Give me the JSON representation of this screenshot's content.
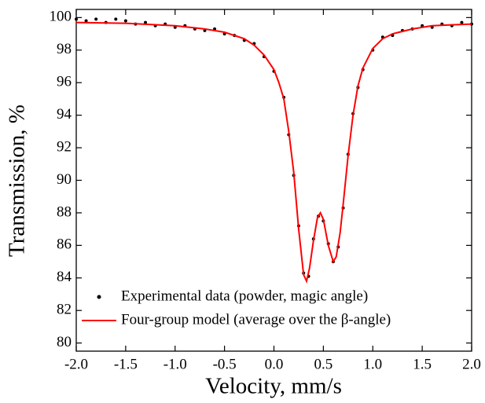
{
  "chart_data": {
    "type": "scatter-line",
    "x_label": "Velocity, mm/s",
    "y_label": "Transmission, %",
    "xlim": [
      -2,
      2
    ],
    "ylim": [
      79.5,
      100.5
    ],
    "xticks": [
      {
        "value": -2,
        "label": "-2.0"
      },
      {
        "value": -1.5,
        "label": "-1.5"
      },
      {
        "value": -1,
        "label": "-1.0"
      },
      {
        "value": -0.5,
        "label": "-0.5"
      },
      {
        "value": 0,
        "label": "0.0"
      },
      {
        "value": 0.5,
        "label": "0.5"
      },
      {
        "value": 1,
        "label": "1.0"
      },
      {
        "value": 1.5,
        "label": "1.5"
      },
      {
        "value": 2,
        "label": "2.0"
      }
    ],
    "yticks": [
      80,
      82,
      84,
      86,
      88,
      90,
      92,
      94,
      96,
      98,
      100
    ],
    "series": [
      {
        "name": "Experimental data (powder, magic angle)",
        "color": "#000000",
        "style": "points",
        "x": [
          -2.0,
          -1.9,
          -1.8,
          -1.7,
          -1.6,
          -1.5,
          -1.4,
          -1.3,
          -1.2,
          -1.1,
          -1.0,
          -0.9,
          -0.8,
          -0.7,
          -0.6,
          -0.5,
          -0.4,
          -0.3,
          -0.2,
          -0.1,
          0.0,
          0.1,
          0.15,
          0.2,
          0.25,
          0.3,
          0.35,
          0.4,
          0.45,
          0.5,
          0.55,
          0.6,
          0.65,
          0.7,
          0.75,
          0.8,
          0.85,
          0.9,
          1.0,
          1.1,
          1.2,
          1.3,
          1.4,
          1.5,
          1.6,
          1.7,
          1.8,
          1.9,
          2.0
        ],
        "values": [
          99.9,
          99.8,
          99.9,
          99.7,
          99.9,
          99.8,
          99.6,
          99.7,
          99.5,
          99.6,
          99.4,
          99.5,
          99.3,
          99.2,
          99.3,
          99.0,
          98.9,
          98.6,
          98.4,
          97.6,
          96.7,
          95.1,
          92.8,
          90.3,
          87.2,
          84.3,
          84.1,
          86.4,
          87.8,
          87.5,
          86.1,
          85.0,
          85.9,
          88.3,
          91.6,
          94.1,
          95.7,
          96.8,
          98.0,
          98.8,
          98.9,
          99.2,
          99.3,
          99.5,
          99.4,
          99.6,
          99.5,
          99.7,
          99.6
        ]
      },
      {
        "name": "Four-group model (average over the β-angle)",
        "color": "#ff0000",
        "style": "line",
        "x": [
          -2.0,
          -1.5,
          -1.0,
          -0.7,
          -0.5,
          -0.3,
          -0.2,
          -0.1,
          0.0,
          0.05,
          0.1,
          0.15,
          0.2,
          0.25,
          0.3,
          0.33,
          0.36,
          0.4,
          0.44,
          0.47,
          0.5,
          0.55,
          0.6,
          0.63,
          0.67,
          0.7,
          0.75,
          0.8,
          0.85,
          0.9,
          1.0,
          1.1,
          1.2,
          1.4,
          1.6,
          1.8,
          2.0
        ],
        "values": [
          99.7,
          99.65,
          99.5,
          99.3,
          99.1,
          98.7,
          98.3,
          97.7,
          96.8,
          96.0,
          95.0,
          93.0,
          90.5,
          87.0,
          84.2,
          83.8,
          84.6,
          86.3,
          87.7,
          88.0,
          87.6,
          86.0,
          85.0,
          85.3,
          86.8,
          88.5,
          91.5,
          94.0,
          95.8,
          96.9,
          98.1,
          98.7,
          99.0,
          99.3,
          99.5,
          99.55,
          99.6
        ]
      }
    ]
  }
}
